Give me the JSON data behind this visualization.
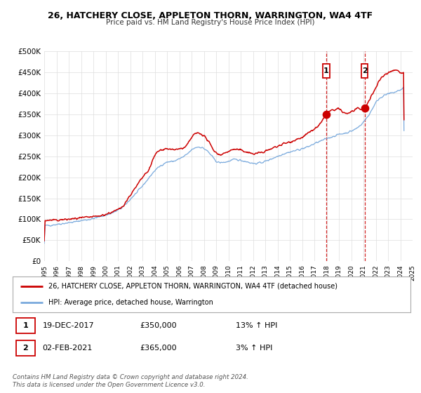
{
  "title": "26, HATCHERY CLOSE, APPLETON THORN, WARRINGTON, WA4 4TF",
  "subtitle": "Price paid vs. HM Land Registry's House Price Index (HPI)",
  "legend_line1": "26, HATCHERY CLOSE, APPLETON THORN, WARRINGTON, WA4 4TF (detached house)",
  "legend_line2": "HPI: Average price, detached house, Warrington",
  "sale1_date": "19-DEC-2017",
  "sale1_price": "£350,000",
  "sale1_hpi": "13% ↑ HPI",
  "sale2_date": "02-FEB-2021",
  "sale2_price": "£365,000",
  "sale2_hpi": "3% ↑ HPI",
  "footer": "Contains HM Land Registry data © Crown copyright and database right 2024.\nThis data is licensed under the Open Government Licence v3.0.",
  "red_color": "#cc0000",
  "blue_color": "#7aaadd",
  "grid_color": "#dddddd",
  "background_color": "#ffffff",
  "marker1_x": 2017.97,
  "marker1_y": 350000,
  "marker2_x": 2021.09,
  "marker2_y": 365000,
  "ylim": [
    0,
    500000
  ],
  "xlim_start": 1995,
  "xlim_end": 2025,
  "hpi_x": [
    1995.0,
    1995.5,
    1996.0,
    1996.5,
    1997.0,
    1997.5,
    1998.0,
    1998.5,
    1999.0,
    1999.5,
    2000.0,
    2000.5,
    2001.0,
    2001.5,
    2002.0,
    2002.5,
    2003.0,
    2003.5,
    2004.0,
    2004.5,
    2005.0,
    2005.5,
    2006.0,
    2006.5,
    2007.0,
    2007.5,
    2008.0,
    2008.5,
    2009.0,
    2009.5,
    2010.0,
    2010.5,
    2011.0,
    2011.5,
    2012.0,
    2012.5,
    2013.0,
    2013.5,
    2014.0,
    2014.5,
    2015.0,
    2015.5,
    2016.0,
    2016.5,
    2017.0,
    2017.5,
    2018.0,
    2018.5,
    2019.0,
    2019.5,
    2020.0,
    2020.5,
    2021.0,
    2021.5,
    2022.0,
    2022.5,
    2023.0,
    2023.5,
    2024.0,
    2024.3
  ],
  "hpi_y": [
    85000,
    86000,
    88000,
    90000,
    92000,
    94000,
    97000,
    99000,
    102000,
    106000,
    110000,
    115000,
    122000,
    132000,
    148000,
    163000,
    180000,
    198000,
    216000,
    228000,
    236000,
    238000,
    244000,
    252000,
    265000,
    272000,
    268000,
    255000,
    238000,
    235000,
    238000,
    242000,
    240000,
    237000,
    233000,
    234000,
    238000,
    244000,
    250000,
    256000,
    260000,
    264000,
    268000,
    273000,
    280000,
    286000,
    292000,
    297000,
    302000,
    305000,
    310000,
    318000,
    332000,
    352000,
    378000,
    392000,
    398000,
    402000,
    408000,
    415000
  ],
  "red_x": [
    1995.0,
    1995.5,
    1996.0,
    1996.5,
    1997.0,
    1997.5,
    1998.0,
    1998.5,
    1999.0,
    1999.5,
    2000.0,
    2000.5,
    2001.0,
    2001.5,
    2002.0,
    2002.5,
    2003.0,
    2003.5,
    2004.0,
    2004.5,
    2005.0,
    2005.5,
    2006.0,
    2006.5,
    2007.0,
    2007.5,
    2008.0,
    2008.5,
    2009.0,
    2009.5,
    2010.0,
    2010.5,
    2011.0,
    2011.5,
    2012.0,
    2012.5,
    2013.0,
    2013.5,
    2014.0,
    2014.5,
    2015.0,
    2015.5,
    2016.0,
    2016.5,
    2017.0,
    2017.5,
    2017.97,
    2018.3,
    2018.7,
    2019.0,
    2019.3,
    2019.7,
    2020.0,
    2020.5,
    2021.09,
    2021.5,
    2022.0,
    2022.4,
    2022.8,
    2023.2,
    2023.6,
    2024.0,
    2024.3
  ],
  "red_y": [
    97000,
    97500,
    98000,
    99000,
    100000,
    101500,
    103000,
    104500,
    106000,
    108000,
    112000,
    117000,
    123000,
    136000,
    158000,
    178000,
    200000,
    218000,
    252000,
    265000,
    268000,
    265000,
    268000,
    272000,
    295000,
    305000,
    298000,
    278000,
    258000,
    255000,
    262000,
    266000,
    264000,
    260000,
    256000,
    258000,
    262000,
    268000,
    274000,
    280000,
    284000,
    290000,
    295000,
    305000,
    315000,
    328000,
    350000,
    358000,
    360000,
    362000,
    355000,
    352000,
    356000,
    362000,
    365000,
    385000,
    415000,
    435000,
    445000,
    452000,
    455000,
    450000,
    448000
  ]
}
